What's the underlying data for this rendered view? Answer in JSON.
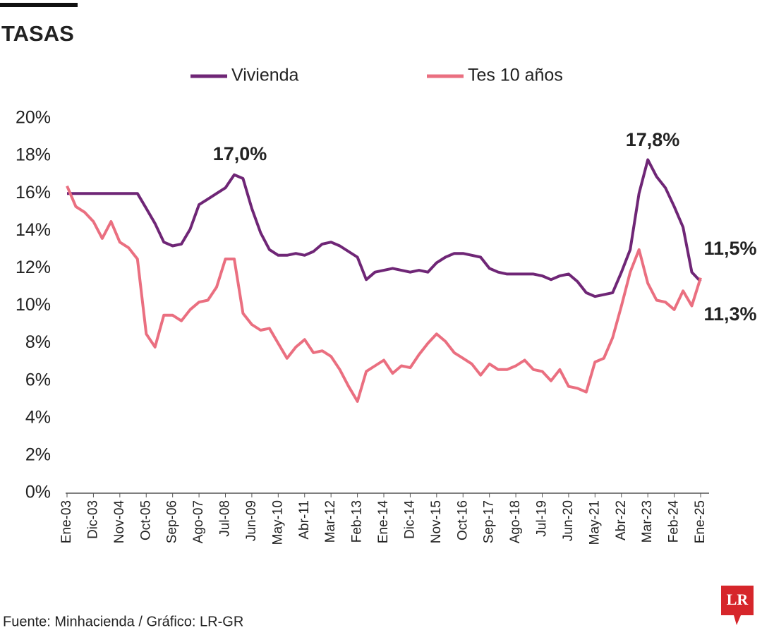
{
  "chart_data": {
    "type": "line",
    "title": "TASAS",
    "source": "Fuente: Minhacienda / Gráfico: LR-GR",
    "logo": "LR",
    "annotations": [
      "17,0%",
      "17,8%",
      "11,5%",
      "11,3%"
    ],
    "categories": [
      "Ene-03",
      null,
      null,
      "Dic-03",
      null,
      null,
      "Nov-04",
      null,
      null,
      "Oct-05",
      null,
      null,
      "Sep-06",
      null,
      null,
      "Ago-07",
      null,
      null,
      "Jul-08",
      null,
      null,
      "Jun-09",
      null,
      null,
      "May-10",
      null,
      null,
      "Abr-11",
      null,
      null,
      "Mar-12",
      null,
      null,
      "Feb-13",
      null,
      null,
      "Ene-14",
      null,
      null,
      "Dic-14",
      null,
      null,
      "Nov-15",
      null,
      null,
      "Oct-16",
      null,
      null,
      "Sep-17",
      null,
      null,
      "Ago-18",
      null,
      null,
      "Jul-19",
      null,
      null,
      "Jun-20",
      null,
      null,
      "May-21",
      null,
      null,
      "Abr-22",
      null,
      null,
      "Mar-23",
      null,
      null,
      "Feb-24",
      null,
      null,
      "Ene-25"
    ],
    "series": [
      {
        "name": "Vivienda",
        "color": "#6f2676",
        "values": [
          16.0,
          16.0,
          16.0,
          16.0,
          16.0,
          16.0,
          16.0,
          16.0,
          16.0,
          15.2,
          14.4,
          13.4,
          13.2,
          13.3,
          14.1,
          15.4,
          15.7,
          16.0,
          16.3,
          17.0,
          16.8,
          15.2,
          13.9,
          13.0,
          12.7,
          12.7,
          12.8,
          12.7,
          12.9,
          13.3,
          13.4,
          13.2,
          12.9,
          12.6,
          11.4,
          11.8,
          11.9,
          12.0,
          11.9,
          11.8,
          11.9,
          11.8,
          12.3,
          12.6,
          12.8,
          12.8,
          12.7,
          12.6,
          12.0,
          11.8,
          11.7,
          11.7,
          11.7,
          11.7,
          11.6,
          11.4,
          11.6,
          11.7,
          11.3,
          10.7,
          10.5,
          10.6,
          10.7,
          11.8,
          13.0,
          16.0,
          17.8,
          16.9,
          16.3,
          15.3,
          14.2,
          11.8,
          11.3
        ]
      },
      {
        "name": "Tes 10 años",
        "color": "#ea6f80",
        "values": [
          16.4,
          15.3,
          15.0,
          14.5,
          13.6,
          14.5,
          13.4,
          13.1,
          12.5,
          8.5,
          7.8,
          9.5,
          9.5,
          9.2,
          9.8,
          10.2,
          10.3,
          11.0,
          12.5,
          12.5,
          9.6,
          9.0,
          8.7,
          8.8,
          8.0,
          7.2,
          7.8,
          8.2,
          7.5,
          7.6,
          7.3,
          6.6,
          5.7,
          4.9,
          6.5,
          6.8,
          7.1,
          6.4,
          6.8,
          6.7,
          7.4,
          8.0,
          8.5,
          8.1,
          7.5,
          7.2,
          6.9,
          6.3,
          6.9,
          6.6,
          6.6,
          6.8,
          7.1,
          6.6,
          6.5,
          6.0,
          6.6,
          5.7,
          5.6,
          5.4,
          7.0,
          7.2,
          8.3,
          10.0,
          11.8,
          13.0,
          11.2,
          10.3,
          10.2,
          9.8,
          10.8,
          10.0,
          11.5
        ]
      }
    ],
    "ylim": [
      0,
      20
    ],
    "yticks": [
      {
        "value": 0,
        "label": "0%"
      },
      {
        "value": 2,
        "label": "2%"
      },
      {
        "value": 4,
        "label": "4%"
      },
      {
        "value": 6,
        "label": "6%"
      },
      {
        "value": 8,
        "label": "8%"
      },
      {
        "value": 10,
        "label": "10%"
      },
      {
        "value": 12,
        "label": "12%"
      },
      {
        "value": 14,
        "label": "14%"
      },
      {
        "value": 16,
        "label": "16%"
      },
      {
        "value": 18,
        "label": "18%"
      },
      {
        "value": 20,
        "label": "20%"
      }
    ],
    "grid": false
  }
}
